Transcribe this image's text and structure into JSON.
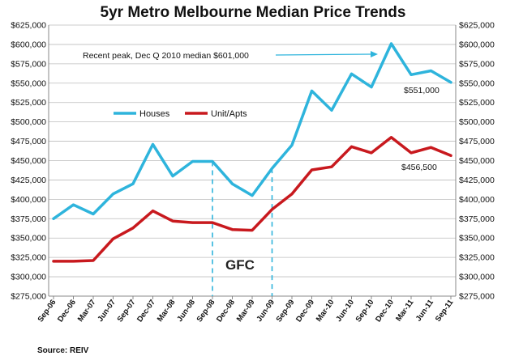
{
  "chart_data": {
    "type": "line",
    "title": "5yr  Metro Melbourne Median Price Trends",
    "categories": [
      "Sep-06",
      "Dec-06",
      "Mar-07",
      "Jun-07",
      "Sep-07",
      "Dec-07",
      "Mar-08",
      "Jun-08",
      "Sep-08",
      "Dec-08",
      "Mar-09",
      "Jun-09",
      "Sep-09",
      "Dec-09",
      "Mar-10",
      "Jun-10",
      "Sep-10",
      "Dec-10",
      "Mar-11",
      "Jun-11",
      "Sep-11"
    ],
    "series": [
      {
        "name": "Houses",
        "color": "#2EB4DC",
        "values": [
          375000,
          393000,
          381000,
          407000,
          420000,
          471000,
          430000,
          449000,
          449000,
          420000,
          405000,
          440000,
          470000,
          540000,
          515000,
          562000,
          545000,
          601000,
          561000,
          566000,
          551000
        ]
      },
      {
        "name": "Unit/Apts",
        "color": "#C8191E",
        "values": [
          320000,
          320000,
          321000,
          349000,
          363000,
          385000,
          372000,
          370000,
          370000,
          361000,
          360000,
          387000,
          407000,
          438000,
          442000,
          468000,
          460000,
          480000,
          460000,
          467000,
          456500
        ]
      }
    ],
    "ylim": [
      275000,
      625000
    ],
    "y_ticks": [
      "$275,000",
      "$300,000",
      "$325,000",
      "$350,000",
      "$375,000",
      "$400,000",
      "$425,000",
      "$450,000",
      "$475,000",
      "$500,000",
      "$525,000",
      "$550,000",
      "$575,000",
      "$600,000",
      "$625,000"
    ],
    "dual_y_axis": true,
    "grid": "horizontal",
    "legend_position": "center-left",
    "annotations": {
      "peak_text": "Recent peak, Dec Q 2010 median $601,000",
      "houses_end_label": "$551,000",
      "units_end_label": "$456,500",
      "gfc_label": "GFC",
      "gfc_markers": [
        "Sep-08",
        "Jun-09"
      ]
    },
    "source": "Source:  REIV"
  }
}
